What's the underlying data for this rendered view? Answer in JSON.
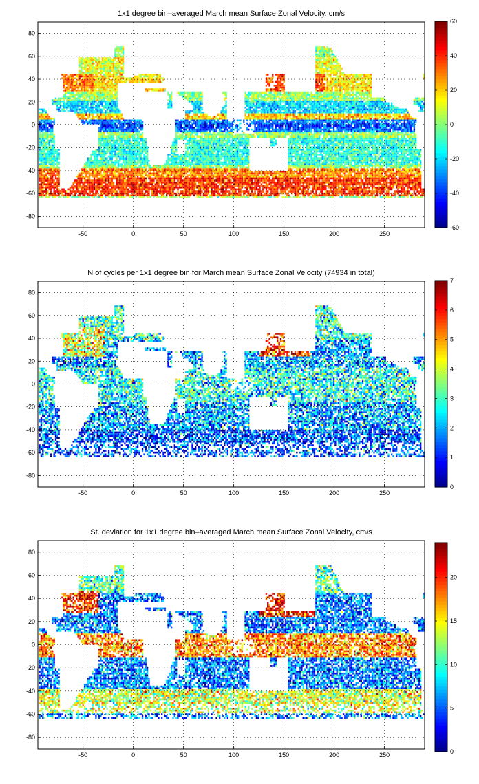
{
  "figure": {
    "panels": [
      {
        "title": "1x1 degree bin–averaged March mean Surface Zonal Velocity, cm/s",
        "colorbar": {
          "min": -60,
          "max": 60,
          "ticks": [
            60,
            40,
            20,
            0,
            -20,
            -40,
            -60
          ]
        },
        "field": "zonal_velocity"
      },
      {
        "title": "N of cycles per 1x1 degree bin for March mean Surface Zonal Velocity (74934 in total)",
        "colorbar": {
          "min": 0,
          "max": 7,
          "ticks": [
            7,
            6,
            5,
            4,
            3,
            2,
            1,
            0
          ]
        },
        "field": "cycle_count"
      },
      {
        "title": "St. deviation for 1x1 degree bin–averaged March mean Surface Zonal Velocity, cm/s",
        "colorbar": {
          "min": 0,
          "max": 24,
          "ticks": [
            20,
            15,
            10,
            5,
            0
          ]
        },
        "field": "std_deviation"
      }
    ]
  },
  "chart_data": [
    {
      "type": "heatmap",
      "title": "1x1 degree bin–averaged March mean Surface Zonal Velocity, cm/s",
      "xlim": [
        -95,
        290
      ],
      "ylim": [
        -90,
        90
      ],
      "xticks": [
        -50,
        0,
        50,
        100,
        150,
        200,
        250
      ],
      "yticks": [
        80,
        60,
        40,
        20,
        0,
        -20,
        -40,
        -60,
        -80
      ],
      "grid": true,
      "colormap": "jet",
      "clim": [
        -60,
        60
      ],
      "colorbar_ticks": [
        60,
        40,
        20,
        0,
        -20,
        -40,
        -60
      ],
      "colorbar_position": "right",
      "features": [
        "westward equatorial band (~ -40 cm/s) in Pacific and Atlantic",
        "eastward Antarctic Circumpolar Current band (~ +30 to +50 cm/s) near -50",
        "eastward Kuroshio/Gulf Stream extension (~ +30 cm/s) near 35-40 N"
      ]
    },
    {
      "type": "heatmap",
      "title": "N of cycles per 1x1 degree bin for March mean Surface Zonal Velocity (74934 in total)",
      "xlim": [
        -95,
        290
      ],
      "ylim": [
        -90,
        90
      ],
      "xticks": [
        -50,
        0,
        50,
        100,
        150,
        200,
        250
      ],
      "yticks": [
        80,
        60,
        40,
        20,
        0,
        -20,
        -40,
        -60,
        -80
      ],
      "grid": true,
      "colormap": "jet",
      "clim": [
        0,
        7
      ],
      "colorbar_ticks": [
        7,
        6,
        5,
        4,
        3,
        2,
        1,
        0
      ],
      "colorbar_position": "right",
      "total_cycles": 74934
    },
    {
      "type": "heatmap",
      "title": "St. deviation for 1x1 degree bin–averaged March mean Surface Zonal Velocity, cm/s",
      "xlim": [
        -95,
        290
      ],
      "ylim": [
        -90,
        90
      ],
      "xticks": [
        -50,
        0,
        50,
        100,
        150,
        200,
        250
      ],
      "yticks": [
        80,
        60,
        40,
        20,
        0,
        -20,
        -40,
        -60,
        -80
      ],
      "grid": true,
      "colormap": "jet",
      "clim": [
        0,
        24
      ],
      "colorbar_ticks": [
        20,
        15,
        10,
        5,
        0
      ],
      "colorbar_position": "right"
    }
  ]
}
